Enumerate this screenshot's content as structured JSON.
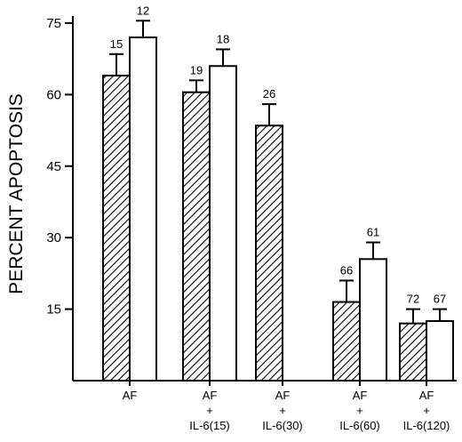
{
  "chart_data": {
    "type": "bar",
    "ylabel": "PERCENT APOPTOSIS",
    "xlabel": "",
    "title": "",
    "ylim": [
      0,
      75
    ],
    "yticks": [
      15,
      30,
      45,
      60,
      75
    ],
    "grid": false,
    "legend": "none",
    "categories": [
      [
        "AF"
      ],
      [
        "AF",
        "+",
        "IL-6(15)"
      ],
      [
        "AF",
        "+",
        "IL-6(30)"
      ],
      [
        "AF",
        "+",
        "IL-6(60)"
      ],
      [
        "AF",
        "+",
        "IL-6(120)"
      ]
    ],
    "series": [
      {
        "fill": "hatched",
        "values": [
          64.0,
          60.5,
          53.5,
          16.5,
          12.0
        ],
        "errors": [
          4.5,
          2.5,
          4.5,
          4.5,
          3.0
        ],
        "labels": [
          "15",
          "19",
          "26",
          "66",
          "72"
        ]
      },
      {
        "fill": "white",
        "values": [
          72.0,
          66.0,
          null,
          25.5,
          12.5
        ],
        "errors": [
          3.5,
          3.5,
          null,
          3.5,
          2.5
        ],
        "labels": [
          "12",
          "18",
          "",
          "61",
          "67"
        ]
      }
    ]
  }
}
